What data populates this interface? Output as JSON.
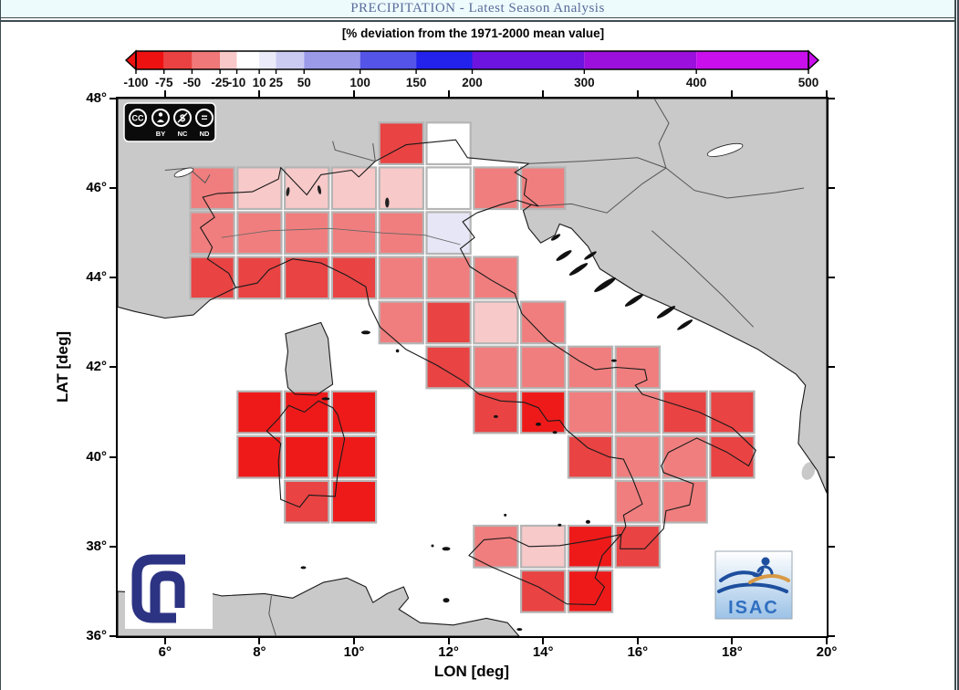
{
  "header": {
    "title": "PRECIPITATION - Latest Season Analysis"
  },
  "figure": {
    "colorbar_title": "[% deviation from the 1971-2000 mean value]",
    "tick_suffix": "°"
  },
  "badges": {
    "cc_labels": [
      "BY",
      "NC",
      "ND"
    ],
    "isac_label": "ISAC"
  },
  "chart_data": {
    "type": "heatmap",
    "title": "PRECIPITATION - Latest Season Analysis",
    "subtitle": "[% deviation from the 1971-2000 mean value]",
    "xlabel": "LON [deg]",
    "ylabel": "LAT [deg]",
    "xlim": [
      5,
      20
    ],
    "ylim": [
      36,
      48
    ],
    "x_ticks": [
      6,
      8,
      10,
      12,
      14,
      16,
      18,
      20
    ],
    "y_ticks": [
      36,
      38,
      40,
      42,
      44,
      46,
      48
    ],
    "cell_size_deg": 1,
    "colorbar": {
      "domain": [
        -100,
        500
      ],
      "ticks": [
        -100,
        -75,
        -50,
        -25,
        -10,
        10,
        25,
        50,
        100,
        150,
        200,
        300,
        400,
        500
      ],
      "segments": [
        {
          "from": -100,
          "to": -75,
          "color": "#ed1111"
        },
        {
          "from": -75,
          "to": -50,
          "color": "#ea4242"
        },
        {
          "from": -50,
          "to": -25,
          "color": "#f07878"
        },
        {
          "from": -25,
          "to": -10,
          "color": "#f8c8c8"
        },
        {
          "from": -10,
          "to": 10,
          "color": "#ffffff"
        },
        {
          "from": 10,
          "to": 25,
          "color": "#eaeaf8"
        },
        {
          "from": 25,
          "to": 50,
          "color": "#cbcbf2"
        },
        {
          "from": 50,
          "to": 100,
          "color": "#9a9ae9"
        },
        {
          "from": 100,
          "to": 150,
          "color": "#5454e8"
        },
        {
          "from": 150,
          "to": 200,
          "color": "#2222ec"
        },
        {
          "from": 200,
          "to": 300,
          "color": "#6d14e0"
        },
        {
          "from": 300,
          "to": 400,
          "color": "#9b10dc"
        },
        {
          "from": 400,
          "to": 500,
          "color": "#c80fec"
        }
      ],
      "arrow_left_color": "#ed1111",
      "arrow_right_color": "#c80fec"
    },
    "classes": {
      "m100": {
        "range_pct": "-100 to -75",
        "color": "#ee1a1a"
      },
      "m75": {
        "range_pct": "-75 to -50",
        "color": "#e94343"
      },
      "m50": {
        "range_pct": "-50 to -25",
        "color": "#f07e7e"
      },
      "m25": {
        "range_pct": "-25 to -10",
        "color": "#f8c9c9"
      },
      "z": {
        "range_pct": "-10 to 10",
        "color": "#ffffff"
      },
      "p10": {
        "range_pct": "10 to 25",
        "color": "#e6e6f6"
      }
    },
    "cells": [
      {
        "lon": 11,
        "lat": 47,
        "class": "m75"
      },
      {
        "lon": 12,
        "lat": 47,
        "class": "z"
      },
      {
        "lon": 7,
        "lat": 46,
        "class": "m50"
      },
      {
        "lon": 8,
        "lat": 46,
        "class": "m25"
      },
      {
        "lon": 9,
        "lat": 46,
        "class": "m25"
      },
      {
        "lon": 10,
        "lat": 46,
        "class": "m25"
      },
      {
        "lon": 11,
        "lat": 46,
        "class": "m25"
      },
      {
        "lon": 12,
        "lat": 46,
        "class": "z"
      },
      {
        "lon": 13,
        "lat": 46,
        "class": "m50"
      },
      {
        "lon": 14,
        "lat": 46,
        "class": "m50"
      },
      {
        "lon": 7,
        "lat": 45,
        "class": "m50"
      },
      {
        "lon": 8,
        "lat": 45,
        "class": "m50"
      },
      {
        "lon": 9,
        "lat": 45,
        "class": "m50"
      },
      {
        "lon": 10,
        "lat": 45,
        "class": "m50"
      },
      {
        "lon": 11,
        "lat": 45,
        "class": "m50"
      },
      {
        "lon": 12,
        "lat": 45,
        "class": "p10"
      },
      {
        "lon": 7,
        "lat": 44,
        "class": "m75"
      },
      {
        "lon": 8,
        "lat": 44,
        "class": "m75"
      },
      {
        "lon": 9,
        "lat": 44,
        "class": "m75"
      },
      {
        "lon": 10,
        "lat": 44,
        "class": "m75"
      },
      {
        "lon": 11,
        "lat": 44,
        "class": "m50"
      },
      {
        "lon": 12,
        "lat": 44,
        "class": "m50"
      },
      {
        "lon": 13,
        "lat": 44,
        "class": "m50"
      },
      {
        "lon": 11,
        "lat": 43,
        "class": "m50"
      },
      {
        "lon": 12,
        "lat": 43,
        "class": "m75"
      },
      {
        "lon": 13,
        "lat": 43,
        "class": "m25"
      },
      {
        "lon": 14,
        "lat": 43,
        "class": "m50"
      },
      {
        "lon": 12,
        "lat": 42,
        "class": "m75"
      },
      {
        "lon": 13,
        "lat": 42,
        "class": "m50"
      },
      {
        "lon": 14,
        "lat": 42,
        "class": "m50"
      },
      {
        "lon": 15,
        "lat": 42,
        "class": "m50"
      },
      {
        "lon": 16,
        "lat": 42,
        "class": "m50"
      },
      {
        "lon": 8,
        "lat": 41,
        "class": "m100"
      },
      {
        "lon": 9,
        "lat": 41,
        "class": "m100"
      },
      {
        "lon": 10,
        "lat": 41,
        "class": "m100"
      },
      {
        "lon": 13,
        "lat": 41,
        "class": "m75"
      },
      {
        "lon": 14,
        "lat": 41,
        "class": "m100"
      },
      {
        "lon": 15,
        "lat": 41,
        "class": "m50"
      },
      {
        "lon": 16,
        "lat": 41,
        "class": "m50"
      },
      {
        "lon": 17,
        "lat": 41,
        "class": "m75"
      },
      {
        "lon": 18,
        "lat": 41,
        "class": "m75"
      },
      {
        "lon": 8,
        "lat": 40,
        "class": "m100"
      },
      {
        "lon": 9,
        "lat": 40,
        "class": "m100"
      },
      {
        "lon": 10,
        "lat": 40,
        "class": "m100"
      },
      {
        "lon": 15,
        "lat": 40,
        "class": "m75"
      },
      {
        "lon": 16,
        "lat": 40,
        "class": "m50"
      },
      {
        "lon": 17,
        "lat": 40,
        "class": "m50"
      },
      {
        "lon": 18,
        "lat": 40,
        "class": "m75"
      },
      {
        "lon": 9,
        "lat": 39,
        "class": "m75"
      },
      {
        "lon": 10,
        "lat": 39,
        "class": "m100"
      },
      {
        "lon": 16,
        "lat": 39,
        "class": "m50"
      },
      {
        "lon": 17,
        "lat": 39,
        "class": "m50"
      },
      {
        "lon": 13,
        "lat": 38,
        "class": "m50"
      },
      {
        "lon": 14,
        "lat": 38,
        "class": "m25"
      },
      {
        "lon": 15,
        "lat": 38,
        "class": "m100"
      },
      {
        "lon": 16,
        "lat": 38,
        "class": "m75"
      },
      {
        "lon": 14,
        "lat": 37,
        "class": "m75"
      },
      {
        "lon": 15,
        "lat": 37,
        "class": "m100"
      }
    ]
  }
}
